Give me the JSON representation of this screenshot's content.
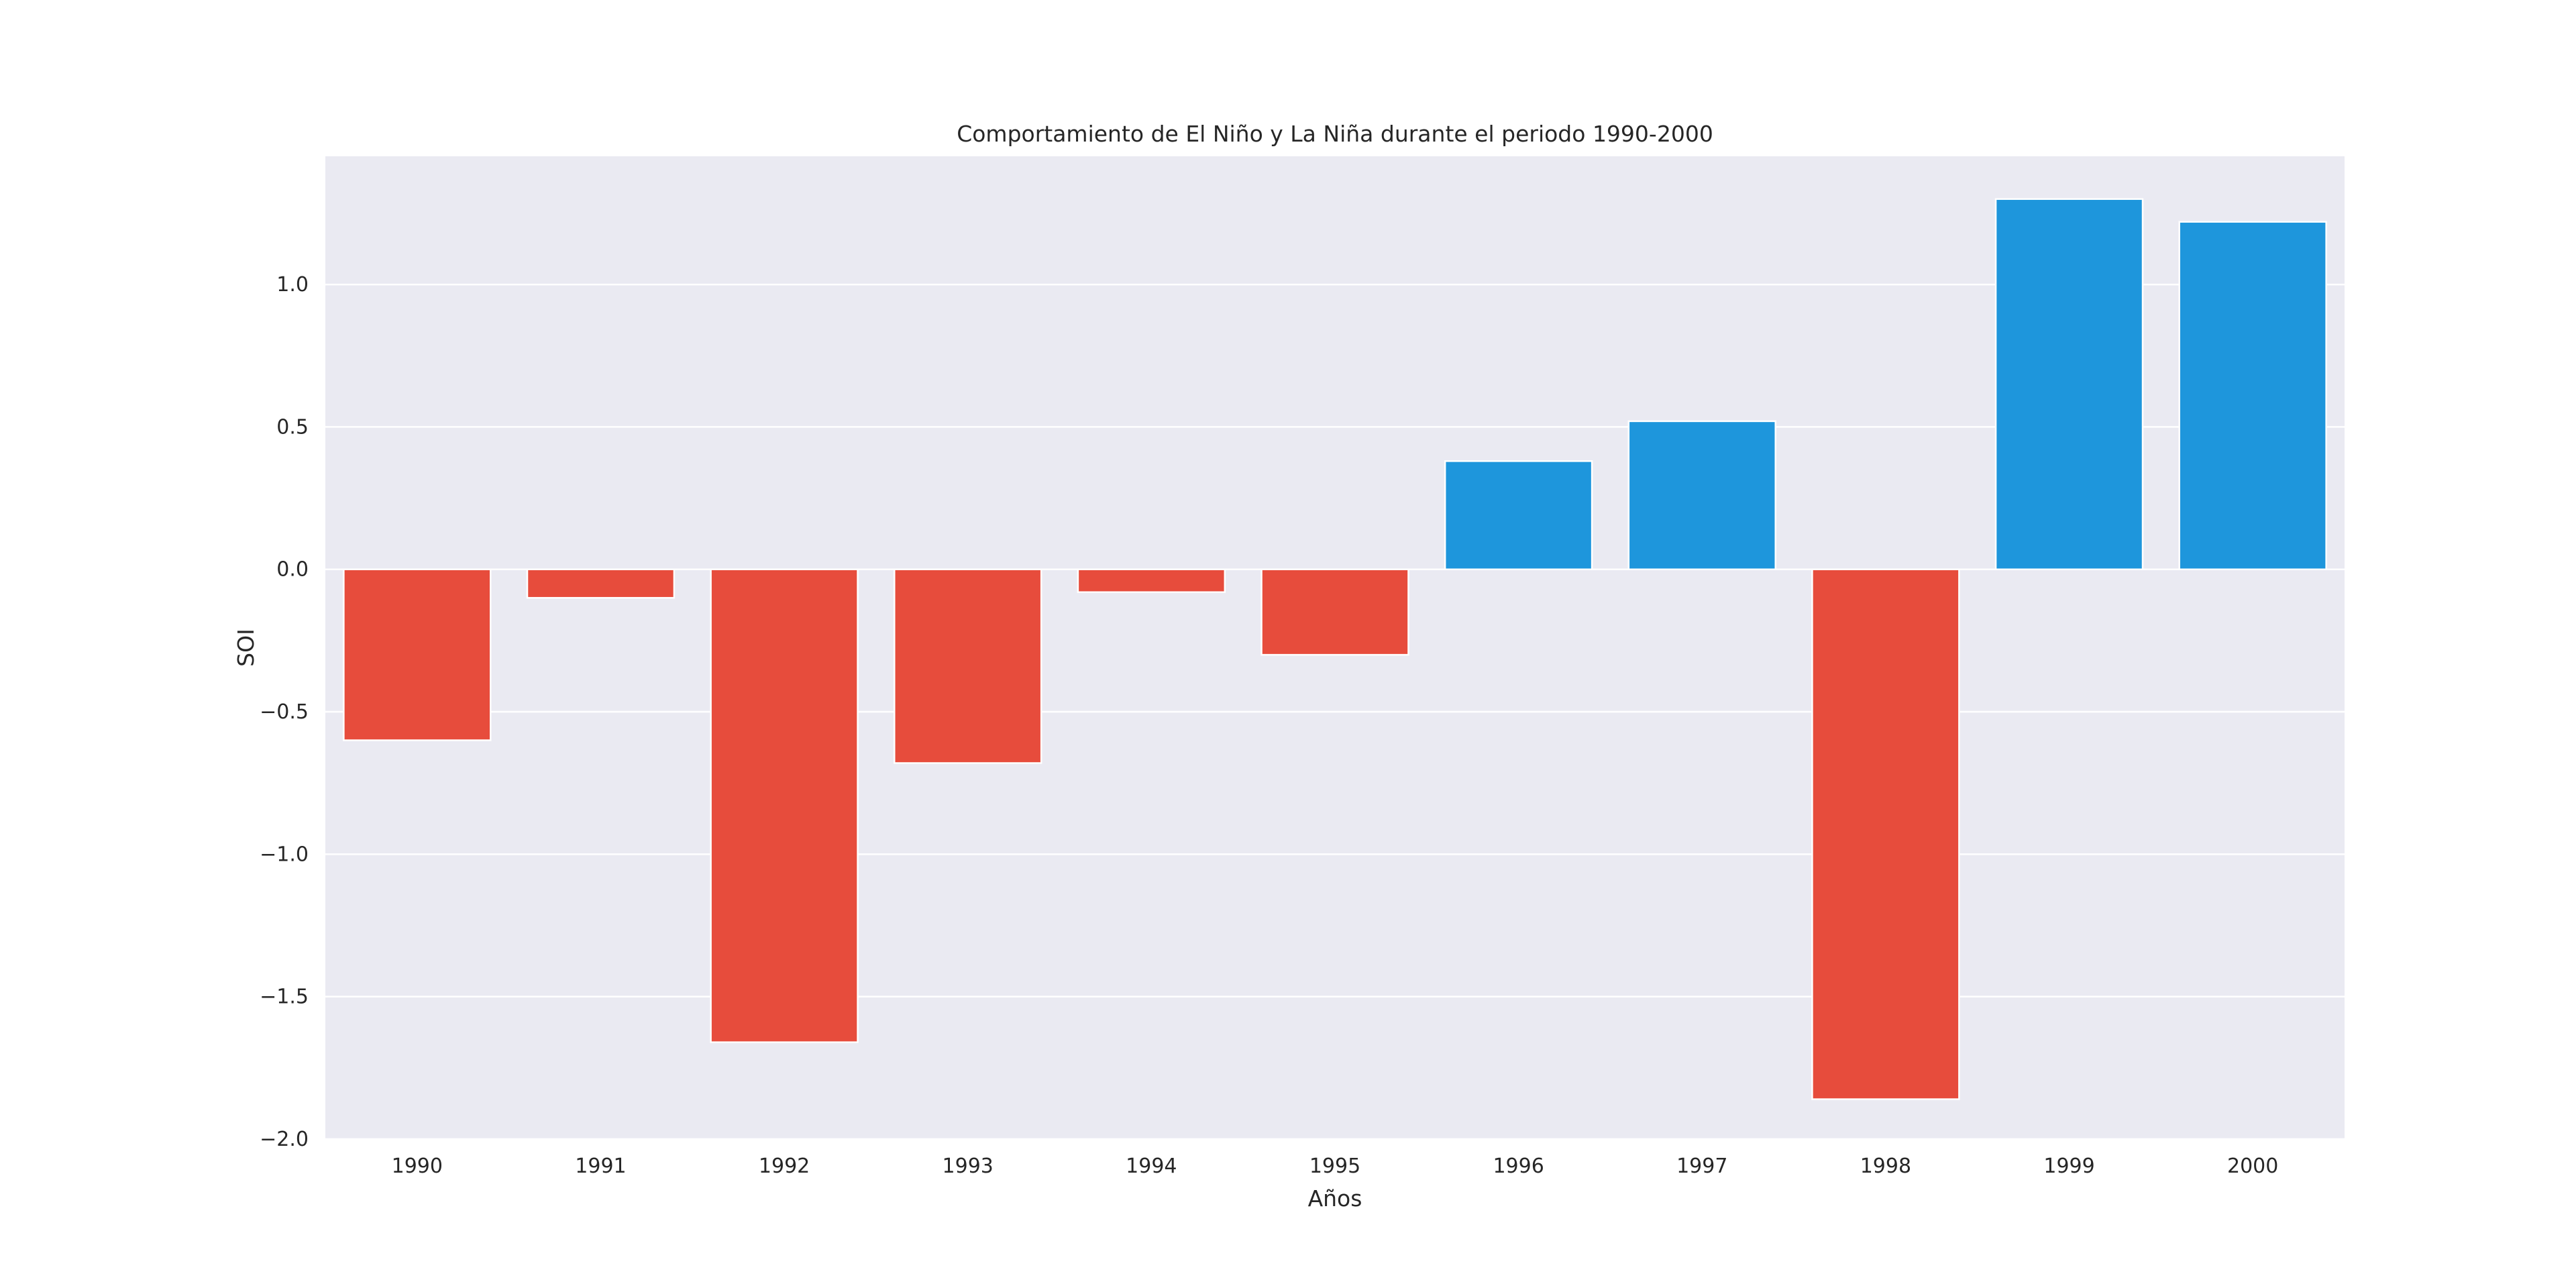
{
  "chart_data": {
    "type": "bar",
    "title": "Comportamiento de El Niño y La Niña durante el periodo 1990-2000",
    "xlabel": "Años",
    "ylabel": "SOI",
    "categories": [
      "1990",
      "1991",
      "1992",
      "1993",
      "1994",
      "1995",
      "1996",
      "1997",
      "1998",
      "1999",
      "2000"
    ],
    "values": [
      -0.6,
      -0.1,
      -1.66,
      -0.68,
      -0.08,
      -0.3,
      0.38,
      0.52,
      -1.86,
      1.3,
      1.22
    ],
    "ylim": [
      -2.0,
      1.45
    ],
    "yticks": [
      -2.0,
      -1.5,
      -1.0,
      -0.5,
      0.0,
      0.5,
      1.0
    ],
    "ytick_labels": [
      "−2.0",
      "−1.5",
      "−1.0",
      "−0.5",
      "0.0",
      "0.5",
      "1.0"
    ],
    "grid": true,
    "colors": {
      "negative": "#e74c3c",
      "positive": "#1e96dc",
      "background": "#eaeaf2",
      "grid": "#ffffff"
    }
  }
}
